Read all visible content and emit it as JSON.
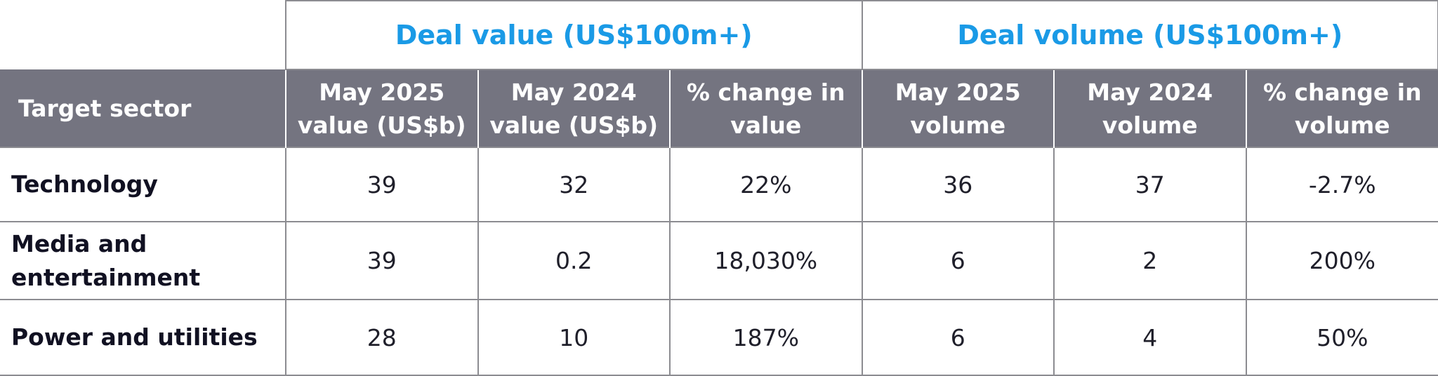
{
  "table": {
    "group_headers": {
      "value": "Deal value (US$100m+)",
      "volume": "Deal volume (US$100m+)"
    },
    "column_headers": [
      "Target sector",
      "May 2025 value (US$b)",
      "May 2024 value (US$b)",
      "% change in value",
      "May 2025 volume",
      "May 2024 volume",
      "% change in volume"
    ],
    "rows": [
      {
        "sector": "Technology",
        "cells": [
          "39",
          "32",
          "22%",
          "36",
          "37",
          "-2.7%"
        ]
      },
      {
        "sector": "Media and entertainment",
        "cells": [
          "39",
          "0.2",
          "18,030%",
          "6",
          "2",
          "200%"
        ]
      },
      {
        "sector": "Power and utilities",
        "cells": [
          "28",
          "10",
          "187%",
          "6",
          "4",
          "50%"
        ]
      }
    ]
  },
  "colors": {
    "group_header_text": "#1a9ae6",
    "subheader_bg": "#747480",
    "border": "#8c8c91"
  }
}
